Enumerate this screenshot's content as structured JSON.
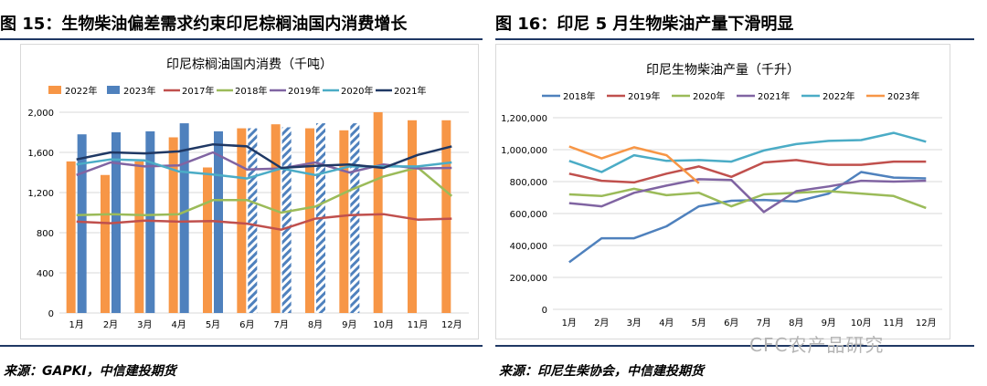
{
  "left": {
    "figure_title": "图 15：生物柴油偏差需求约束印尼棕榈油国内消费增长",
    "source": "来源：GAPKI，中信建投期货",
    "chart_data": {
      "type": "bar",
      "title": "印尼棕榈油国内消费（千吨）",
      "categories": [
        "1月",
        "2月",
        "3月",
        "4月",
        "5月",
        "6月",
        "7月",
        "8月",
        "9月",
        "10月",
        "11月",
        "12月"
      ],
      "ylim": [
        0,
        2000
      ],
      "yticks": [
        "0",
        "400",
        "800",
        "1,200",
        "1,600",
        "2,000"
      ],
      "bar_series": [
        {
          "name": "2022年",
          "color": "#f79646",
          "values": [
            1510,
            1375,
            1510,
            1750,
            1450,
            1840,
            1880,
            1840,
            1820,
            2000,
            1920,
            1920
          ]
        },
        {
          "name": "2023年",
          "color": "#4f81bd",
          "values": [
            1780,
            1800,
            1810,
            1890,
            1810,
            1840,
            1850,
            1890,
            1890,
            null,
            null,
            null
          ]
        }
      ],
      "hatched_from_index": 5,
      "line_series": [
        {
          "name": "2017年",
          "color": "#c0504d",
          "values": [
            910,
            895,
            920,
            910,
            915,
            890,
            830,
            940,
            975,
            985,
            930,
            940
          ]
        },
        {
          "name": "2018年",
          "color": "#9bbb59",
          "values": [
            975,
            985,
            975,
            985,
            1125,
            1125,
            1000,
            1060,
            1220,
            1360,
            1450,
            1165
          ]
        },
        {
          "name": "2019年",
          "color": "#8064a2",
          "values": [
            1375,
            1500,
            1460,
            1470,
            1600,
            1430,
            1440,
            1500,
            1400,
            1480,
            1440,
            1445
          ]
        },
        {
          "name": "2020年",
          "color": "#4bacc6",
          "values": [
            1480,
            1530,
            1520,
            1410,
            1380,
            1340,
            1440,
            1375,
            1460,
            1460,
            1460,
            1500
          ]
        },
        {
          "name": "2021年",
          "color": "#1f3864",
          "values": [
            1530,
            1600,
            1590,
            1610,
            1680,
            1660,
            1445,
            1465,
            1480,
            1445,
            1575,
            1660
          ]
        }
      ],
      "legend_position": "top",
      "grid": true
    }
  },
  "right": {
    "figure_title": "图 16：印尼 5 月生物柴油产量下滑明显",
    "source": "来源：印尼生柴协会，中信建投期货",
    "chart_data": {
      "type": "line",
      "title": "印尼生物柴油产量（千升）",
      "categories": [
        "1月",
        "2月",
        "3月",
        "4月",
        "5月",
        "6月",
        "7月",
        "8月",
        "9月",
        "10月",
        "11月",
        "12月"
      ],
      "ylim": [
        0,
        1200000
      ],
      "yticks": [
        "0",
        "200,000",
        "400,000",
        "600,000",
        "800,000",
        "1,000,000",
        "1,200,000"
      ],
      "series": [
        {
          "name": "2018年",
          "color": "#4f81bd",
          "values": [
            295000,
            445000,
            445000,
            520000,
            645000,
            680000,
            685000,
            675000,
            725000,
            860000,
            825000,
            820000
          ]
        },
        {
          "name": "2019年",
          "color": "#c0504d",
          "values": [
            850000,
            805000,
            795000,
            850000,
            895000,
            830000,
            920000,
            935000,
            905000,
            905000,
            925000,
            925000
          ]
        },
        {
          "name": "2020年",
          "color": "#9bbb59",
          "values": [
            720000,
            710000,
            755000,
            715000,
            730000,
            645000,
            720000,
            730000,
            740000,
            725000,
            710000,
            635000
          ]
        },
        {
          "name": "2021年",
          "color": "#8064a2",
          "values": [
            665000,
            645000,
            730000,
            775000,
            815000,
            810000,
            610000,
            740000,
            770000,
            805000,
            800000,
            805000
          ]
        },
        {
          "name": "2022年",
          "color": "#4bacc6",
          "values": [
            930000,
            860000,
            965000,
            930000,
            935000,
            925000,
            995000,
            1035000,
            1055000,
            1060000,
            1105000,
            1050000
          ]
        },
        {
          "name": "2023年",
          "color": "#f79646",
          "values": [
            1020000,
            945000,
            1015000,
            965000,
            790000,
            null,
            null,
            null,
            null,
            null,
            null,
            null
          ]
        }
      ],
      "legend_position": "top",
      "grid": true
    }
  },
  "watermark": "CFC农产品研究"
}
